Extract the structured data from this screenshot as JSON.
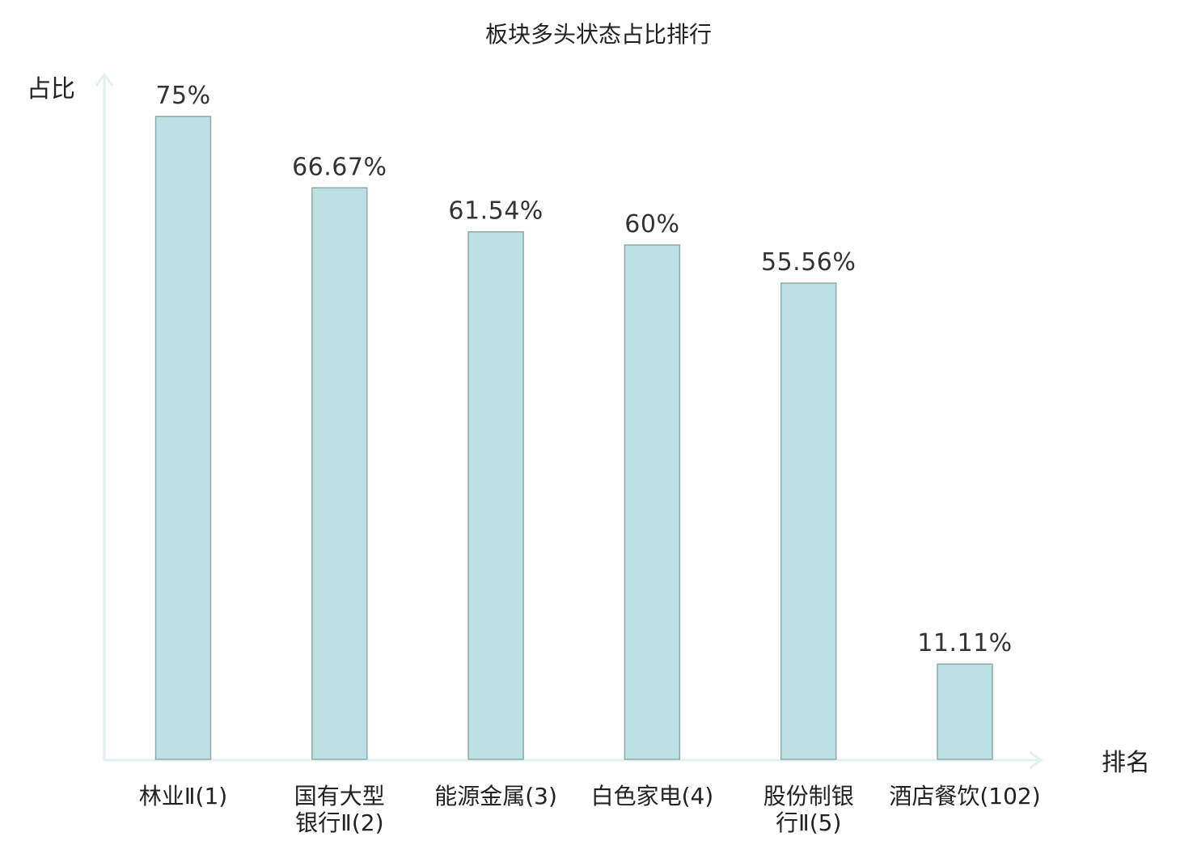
{
  "chart_data": {
    "type": "bar",
    "title": "板块多头状态占比排行",
    "ylabel": "占比",
    "xlabel": "排名",
    "ylim": [
      0,
      80
    ],
    "grid": false,
    "legend": "none",
    "bar_color": "#bde0e2",
    "bar_border_color": "#8fa9aa",
    "axis_color": "#e0f2ef",
    "highlight_color": "#e02020",
    "categories": [
      {
        "lines": [
          "林业Ⅱ(1)"
        ],
        "highlight": false
      },
      {
        "lines": [
          "国有大型",
          "银行Ⅱ(2)"
        ],
        "highlight": false
      },
      {
        "lines": [
          "能源金属(3)"
        ],
        "highlight": false
      },
      {
        "lines": [
          "白色家电(4)"
        ],
        "highlight": false
      },
      {
        "lines": [
          "股份制银",
          "行Ⅱ(5)"
        ],
        "highlight": false
      },
      {
        "lines": [
          "酒店餐饮(102)"
        ],
        "highlight": true
      }
    ],
    "values": [
      75,
      66.67,
      61.54,
      60,
      55.56,
      11.11
    ],
    "value_labels": [
      "75%",
      "66.67%",
      "61.54%",
      "60%",
      "55.56%",
      "11.11%"
    ]
  }
}
